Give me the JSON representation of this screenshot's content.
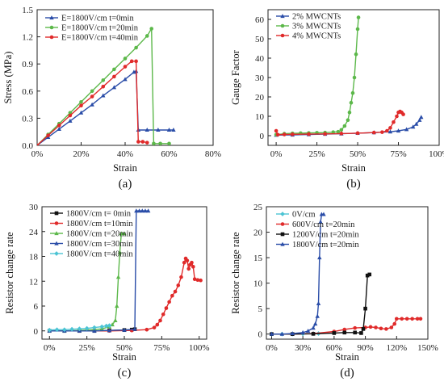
{
  "chart_data": [
    {
      "panel_label": "(a)",
      "type": "line",
      "xlabel": "Strain",
      "ylabel": "Stress (MPa)",
      "xlim": [
        0,
        80
      ],
      "ylim": [
        0,
        1.5
      ],
      "x_ticks": [
        "0%",
        "20%",
        "40%",
        "60%",
        "80%"
      ],
      "x_tick_values": [
        0,
        20,
        40,
        60,
        80
      ],
      "y_ticks": [
        "0.0",
        "0.3",
        "0.6",
        "0.9",
        "1.2",
        "1.5"
      ],
      "y_tick_values": [
        0,
        0.3,
        0.6,
        0.9,
        1.2,
        1.5
      ],
      "legend_position": "top-left",
      "series": [
        {
          "name": "E=1800V/cm t=0min",
          "color": "#2a4da8",
          "marker": "triangle",
          "points": [
            [
              0,
              0
            ],
            [
              5,
              0.09
            ],
            [
              10,
              0.18
            ],
            [
              15,
              0.27
            ],
            [
              20,
              0.36
            ],
            [
              25,
              0.45
            ],
            [
              30,
              0.55
            ],
            [
              35,
              0.64
            ],
            [
              40,
              0.73
            ],
            [
              44,
              0.81
            ],
            [
              45,
              0.82
            ],
            [
              46,
              0.17
            ],
            [
              50,
              0.17
            ],
            [
              55,
              0.17
            ],
            [
              60,
              0.17
            ],
            [
              62,
              0.17
            ]
          ]
        },
        {
          "name": "E=1800V/cm t=20min",
          "color": "#5cb84a",
          "marker": "circle",
          "points": [
            [
              0,
              0
            ],
            [
              5,
              0.12
            ],
            [
              10,
              0.24
            ],
            [
              15,
              0.36
            ],
            [
              20,
              0.48
            ],
            [
              25,
              0.6
            ],
            [
              30,
              0.72
            ],
            [
              35,
              0.84
            ],
            [
              40,
              0.96
            ],
            [
              45,
              1.08
            ],
            [
              50,
              1.21
            ],
            [
              52,
              1.29
            ],
            [
              53,
              0.02
            ],
            [
              56,
              0.02
            ],
            [
              60,
              0.02
            ]
          ]
        },
        {
          "name": "E=1800V/cm t=40min",
          "color": "#e02a2a",
          "marker": "circle",
          "points": [
            [
              0,
              0
            ],
            [
              5,
              0.11
            ],
            [
              10,
              0.22
            ],
            [
              15,
              0.33
            ],
            [
              20,
              0.44
            ],
            [
              25,
              0.54
            ],
            [
              30,
              0.65
            ],
            [
              35,
              0.76
            ],
            [
              40,
              0.87
            ],
            [
              43,
              0.93
            ],
            [
              45,
              0.93
            ],
            [
              46,
              0.04
            ],
            [
              48,
              0.04
            ],
            [
              50,
              0.03
            ]
          ]
        }
      ]
    },
    {
      "panel_label": "(b)",
      "type": "line",
      "xlabel": "Strain",
      "ylabel": "Gauge Factor",
      "xlim": [
        -5,
        100
      ],
      "ylim": [
        -5,
        65
      ],
      "x_ticks": [
        "0%",
        "25%",
        "50%",
        "75%",
        "100%"
      ],
      "x_tick_values": [
        0,
        25,
        50,
        75,
        100
      ],
      "y_ticks": [
        "0",
        "10",
        "20",
        "30",
        "40",
        "50",
        "60"
      ],
      "y_tick_values": [
        0,
        10,
        20,
        30,
        40,
        50,
        60
      ],
      "legend_position": "top-left",
      "series": [
        {
          "name": "2% MWCNTs",
          "color": "#2a4da8",
          "marker": "triangle",
          "points": [
            [
              0,
              0.3
            ],
            [
              10,
              0.4
            ],
            [
              20,
              0.6
            ],
            [
              30,
              0.8
            ],
            [
              40,
              1
            ],
            [
              50,
              1.3
            ],
            [
              60,
              1.6
            ],
            [
              70,
              2
            ],
            [
              75,
              2.5
            ],
            [
              80,
              3.2
            ],
            [
              84,
              4.5
            ],
            [
              86,
              6
            ],
            [
              88,
              8
            ],
            [
              89,
              9.5
            ]
          ]
        },
        {
          "name": "3% MWCNTs",
          "color": "#5cb84a",
          "marker": "circle",
          "points": [
            [
              0,
              0.5
            ],
            [
              5,
              1
            ],
            [
              10,
              1.2
            ],
            [
              15,
              1.3
            ],
            [
              20,
              1.4
            ],
            [
              25,
              1.5
            ],
            [
              30,
              1.6
            ],
            [
              35,
              1.8
            ],
            [
              38,
              2
            ],
            [
              40,
              3
            ],
            [
              42,
              5
            ],
            [
              44,
              8
            ],
            [
              45,
              12
            ],
            [
              46,
              17
            ],
            [
              47,
              22
            ],
            [
              48,
              30
            ],
            [
              49,
              42
            ],
            [
              50,
              55
            ],
            [
              50.5,
              61
            ]
          ]
        },
        {
          "name": "4% MWCNTs",
          "color": "#e02a2a",
          "marker": "circle",
          "points": [
            [
              0,
              2.5
            ],
            [
              1,
              0.5
            ],
            [
              5,
              0.6
            ],
            [
              10,
              0.7
            ],
            [
              20,
              0.8
            ],
            [
              30,
              0.9
            ],
            [
              40,
              1.1
            ],
            [
              50,
              1.3
            ],
            [
              60,
              1.6
            ],
            [
              65,
              1.8
            ],
            [
              68,
              2.5
            ],
            [
              70,
              4
            ],
            [
              72,
              7
            ],
            [
              74,
              10
            ],
            [
              75,
              12
            ],
            [
              76,
              12.5
            ],
            [
              77,
              12
            ],
            [
              78,
              11
            ]
          ]
        }
      ]
    },
    {
      "panel_label": "(c)",
      "type": "line",
      "xlabel": "Strain",
      "ylabel": "Resistor change rate",
      "xlim": [
        -5,
        105
      ],
      "ylim": [
        -2,
        30
      ],
      "x_ticks": [
        "0%",
        "25%",
        "50%",
        "75%",
        "100%"
      ],
      "x_tick_values": [
        0,
        25,
        50,
        75,
        100
      ],
      "y_ticks": [
        "0",
        "6",
        "12",
        "18",
        "24",
        "30"
      ],
      "y_tick_values": [
        0,
        6,
        12,
        18,
        24,
        30
      ],
      "legend_position": "top-left",
      "series": [
        {
          "name": "1800V/cm t=  0min",
          "color": "#111111",
          "marker": "square",
          "points": [
            [
              0,
              0
            ],
            [
              10,
              0
            ],
            [
              20,
              0
            ],
            [
              30,
              0
            ],
            [
              40,
              0.1
            ],
            [
              50,
              0.2
            ],
            [
              55,
              0.3
            ],
            [
              57,
              0.4
            ]
          ]
        },
        {
          "name": "1800V/cm t=10min",
          "color": "#e02a2a",
          "marker": "circle",
          "points": [
            [
              0,
              0
            ],
            [
              20,
              0
            ],
            [
              40,
              0
            ],
            [
              55,
              0.1
            ],
            [
              65,
              0.3
            ],
            [
              70,
              0.8
            ],
            [
              72,
              1.5
            ],
            [
              74,
              2.5
            ],
            [
              76,
              4
            ],
            [
              78,
              5.5
            ],
            [
              80,
              7
            ],
            [
              82,
              8.5
            ],
            [
              84,
              9.5
            ],
            [
              86,
              11
            ],
            [
              88,
              13
            ],
            [
              90,
              16.5
            ],
            [
              91,
              17.5
            ],
            [
              92,
              17
            ],
            [
              93,
              15
            ],
            [
              94,
              16
            ],
            [
              95,
              16.5
            ],
            [
              96,
              15.5
            ],
            [
              97,
              12.5
            ],
            [
              99,
              12.3
            ],
            [
              101,
              12.2
            ]
          ]
        },
        {
          "name": "1800V/cm t=20min",
          "color": "#5cb84a",
          "marker": "triangle",
          "points": [
            [
              0,
              0
            ],
            [
              10,
              0
            ],
            [
              20,
              0.1
            ],
            [
              30,
              0.3
            ],
            [
              35,
              0.5
            ],
            [
              40,
              1
            ],
            [
              42,
              1.5
            ],
            [
              44,
              2.5
            ],
            [
              45,
              6
            ],
            [
              46,
              13
            ],
            [
              47,
              19
            ],
            [
              48,
              23.5
            ],
            [
              50,
              23.5
            ]
          ]
        },
        {
          "name": "1800V/cm t=30min",
          "color": "#2a4da8",
          "marker": "triangle",
          "points": [
            [
              0,
              0
            ],
            [
              10,
              0
            ],
            [
              20,
              0
            ],
            [
              30,
              0
            ],
            [
              40,
              0.1
            ],
            [
              50,
              0.2
            ],
            [
              57,
              0.4
            ],
            [
              58,
              29
            ],
            [
              60,
              29
            ],
            [
              62,
              29
            ],
            [
              64,
              29
            ],
            [
              66,
              29
            ]
          ]
        },
        {
          "name": "1800V/cm t=40min",
          "color": "#4cc4d4",
          "marker": "diamond",
          "points": [
            [
              0,
              0.2
            ],
            [
              5,
              0.3
            ],
            [
              10,
              0.3
            ],
            [
              15,
              0.4
            ],
            [
              20,
              0.5
            ],
            [
              25,
              0.6
            ],
            [
              30,
              0.8
            ],
            [
              35,
              1
            ],
            [
              38,
              1.2
            ],
            [
              40,
              1.3
            ]
          ]
        }
      ]
    },
    {
      "panel_label": "(d)",
      "type": "line",
      "xlabel": "Strain",
      "ylabel": "Resistor change rate",
      "xlim": [
        -5,
        150
      ],
      "ylim": [
        -1,
        25
      ],
      "x_ticks": [
        "0%",
        "30%",
        "60%",
        "90%",
        "120%",
        "150%"
      ],
      "x_tick_values": [
        0,
        30,
        60,
        90,
        120,
        150
      ],
      "y_ticks": [
        "0",
        "5",
        "10",
        "15",
        "20",
        "25"
      ],
      "y_tick_values": [
        0,
        5,
        10,
        15,
        20,
        25
      ],
      "legend_position": "top-left",
      "series": [
        {
          "name": "0V/cm",
          "color": "#4cc4d4",
          "marker": "diamond",
          "points": [
            [
              0,
              0
            ],
            [
              10,
              0
            ],
            [
              20,
              0
            ],
            [
              30,
              0.05
            ],
            [
              40,
              0.1
            ],
            [
              45,
              0.1
            ]
          ]
        },
        {
          "name": "600V/cm  t=20min",
          "color": "#e02a2a",
          "marker": "circle",
          "points": [
            [
              0,
              0
            ],
            [
              20,
              0
            ],
            [
              40,
              0.1
            ],
            [
              60,
              0.5
            ],
            [
              70,
              0.9
            ],
            [
              80,
              1.2
            ],
            [
              90,
              1.3
            ],
            [
              95,
              1.4
            ],
            [
              100,
              1.3
            ],
            [
              105,
              1.1
            ],
            [
              110,
              1
            ],
            [
              115,
              1.3
            ],
            [
              118,
              2
            ],
            [
              120,
              3
            ],
            [
              125,
              3
            ],
            [
              130,
              3
            ],
            [
              135,
              3
            ],
            [
              140,
              3
            ],
            [
              143,
              3
            ]
          ]
        },
        {
          "name": "1200V/cm t=20min",
          "color": "#111111",
          "marker": "square",
          "points": [
            [
              0,
              0
            ],
            [
              20,
              0
            ],
            [
              40,
              0.05
            ],
            [
              60,
              0.2
            ],
            [
              70,
              0.3
            ],
            [
              80,
              0.3
            ],
            [
              86,
              0.2
            ],
            [
              88,
              1
            ],
            [
              90,
              5
            ],
            [
              92,
              11.5
            ],
            [
              94,
              11.7
            ]
          ]
        },
        {
          "name": "1800V/cm t=20min",
          "color": "#2a4da8",
          "marker": "triangle",
          "points": [
            [
              0,
              0
            ],
            [
              10,
              0
            ],
            [
              20,
              0.1
            ],
            [
              30,
              0.3
            ],
            [
              35,
              0.6
            ],
            [
              40,
              1.2
            ],
            [
              42,
              2
            ],
            [
              44,
              3.5
            ],
            [
              45,
              6
            ],
            [
              46,
              15
            ],
            [
              47,
              22
            ],
            [
              48,
              23.5
            ],
            [
              50,
              23.5
            ]
          ]
        }
      ]
    }
  ]
}
